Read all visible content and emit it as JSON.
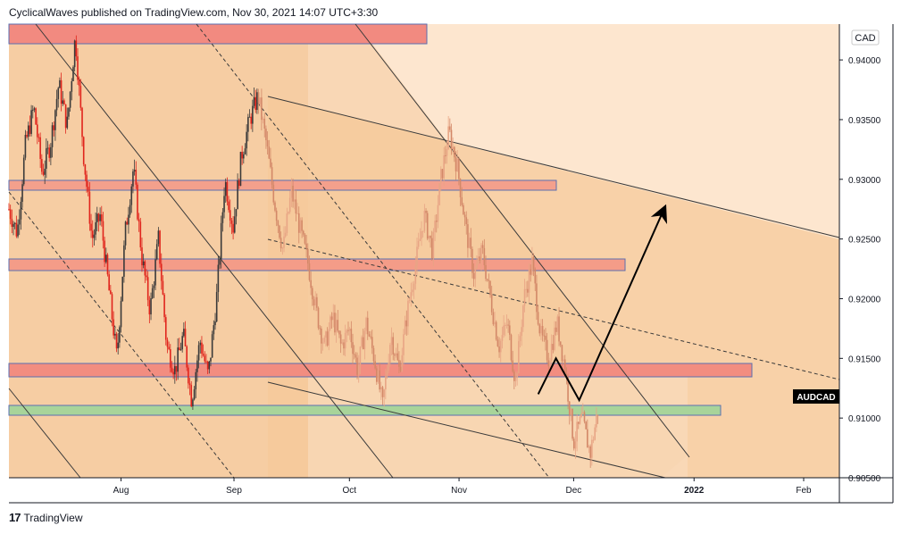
{
  "header": {
    "publish_line": "CyclicalWaves published on TradingView.com, Nov 30, 2021 14:07 UTC+3:30"
  },
  "footer": {
    "logo_glyph": "17",
    "brand": "TradingView"
  },
  "chart_data": {
    "type": "candlestick",
    "symbol": "AUDCAD",
    "currency": "CAD",
    "ylim": [
      0.905,
      0.943
    ],
    "y_ticks": [
      "0.94000",
      "0.93500",
      "0.93000",
      "0.92500",
      "0.92000",
      "0.91500",
      "0.91000",
      "0.90500"
    ],
    "x_tick_labels": [
      "Aug",
      "Sep",
      "Oct",
      "Nov",
      "Dec",
      "2022",
      "Feb"
    ],
    "last_price_label": "AUDCAD",
    "price_path": [
      [
        0.0,
        0.9275
      ],
      [
        0.01,
        0.9255
      ],
      [
        0.02,
        0.933
      ],
      [
        0.03,
        0.936
      ],
      [
        0.04,
        0.9305
      ],
      [
        0.05,
        0.933
      ],
      [
        0.06,
        0.938
      ],
      [
        0.07,
        0.9345
      ],
      [
        0.08,
        0.942
      ],
      [
        0.09,
        0.932
      ],
      [
        0.1,
        0.925
      ],
      [
        0.11,
        0.927
      ],
      [
        0.12,
        0.921
      ],
      [
        0.13,
        0.915
      ],
      [
        0.14,
        0.9255
      ],
      [
        0.15,
        0.931
      ],
      [
        0.16,
        0.9235
      ],
      [
        0.17,
        0.919
      ],
      [
        0.18,
        0.925
      ],
      [
        0.19,
        0.916
      ],
      [
        0.2,
        0.914
      ],
      [
        0.21,
        0.917
      ],
      [
        0.22,
        0.9115
      ],
      [
        0.23,
        0.9165
      ],
      [
        0.24,
        0.9135
      ],
      [
        0.25,
        0.92
      ],
      [
        0.26,
        0.93
      ],
      [
        0.27,
        0.926
      ],
      [
        0.28,
        0.932
      ],
      [
        0.29,
        0.935
      ],
      [
        0.3,
        0.937
      ],
      [
        0.31,
        0.933
      ],
      [
        0.32,
        0.928
      ],
      [
        0.33,
        0.924
      ],
      [
        0.34,
        0.929
      ],
      [
        0.35,
        0.926
      ],
      [
        0.36,
        0.923
      ],
      [
        0.37,
        0.919
      ],
      [
        0.38,
        0.916
      ],
      [
        0.39,
        0.9185
      ],
      [
        0.4,
        0.916
      ],
      [
        0.41,
        0.9175
      ],
      [
        0.42,
        0.914
      ],
      [
        0.43,
        0.918
      ],
      [
        0.44,
        0.915
      ],
      [
        0.45,
        0.911
      ],
      [
        0.46,
        0.917
      ],
      [
        0.47,
        0.914
      ],
      [
        0.48,
        0.919
      ],
      [
        0.49,
        0.923
      ],
      [
        0.5,
        0.927
      ],
      [
        0.51,
        0.924
      ],
      [
        0.52,
        0.93
      ],
      [
        0.53,
        0.934
      ],
      [
        0.54,
        0.931
      ],
      [
        0.55,
        0.926
      ],
      [
        0.56,
        0.922
      ],
      [
        0.57,
        0.924
      ],
      [
        0.58,
        0.92
      ],
      [
        0.59,
        0.916
      ],
      [
        0.6,
        0.918
      ],
      [
        0.61,
        0.913
      ],
      [
        0.62,
        0.92
      ],
      [
        0.63,
        0.923
      ],
      [
        0.64,
        0.917
      ],
      [
        0.65,
        0.915
      ],
      [
        0.66,
        0.918
      ],
      [
        0.67,
        0.914
      ],
      [
        0.68,
        0.908
      ],
      [
        0.69,
        0.91
      ],
      [
        0.7,
        0.907
      ],
      [
        0.71,
        0.911
      ]
    ],
    "projection": [
      [
        0.6373,
        0.912
      ],
      [
        0.6587,
        0.915
      ],
      [
        0.6867,
        0.9115
      ],
      [
        0.7888,
        0.9275
      ]
    ]
  }
}
